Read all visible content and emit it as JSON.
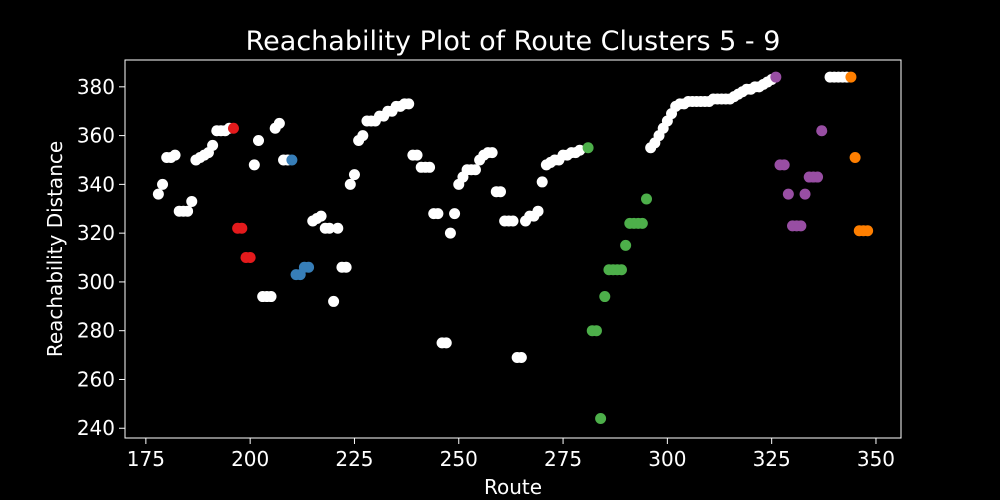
{
  "chart_data": {
    "type": "scatter",
    "title": "Reachability Plot of Route Clusters 5 - 9",
    "xlabel": "Route",
    "ylabel": "Reachability Distance",
    "xlim": [
      170,
      356
    ],
    "ylim": [
      236,
      391
    ],
    "xticks": [
      175,
      200,
      225,
      250,
      275,
      300,
      325,
      350
    ],
    "yticks": [
      240,
      260,
      280,
      300,
      320,
      340,
      360,
      380
    ],
    "grid": false,
    "legend": "none",
    "colors": {
      "background": "#000000",
      "foreground": "#ffffff",
      "unclustered": "#ffffff",
      "red": "#e41a1c",
      "blue": "#377eb8",
      "green": "#4daf4a",
      "purple": "#984ea3",
      "orange": "#ff7f00"
    },
    "groups": [
      {
        "color": "unclustered",
        "points": [
          [
            178,
            336
          ],
          [
            179,
            340
          ],
          [
            180,
            351
          ],
          [
            181,
            351
          ],
          [
            182,
            352
          ],
          [
            183,
            329
          ],
          [
            184,
            329
          ],
          [
            185,
            329
          ],
          [
            186,
            333
          ],
          [
            187,
            350
          ],
          [
            188,
            351
          ],
          [
            189,
            352
          ],
          [
            190,
            353
          ],
          [
            191,
            356
          ],
          [
            192,
            362
          ],
          [
            193,
            362
          ],
          [
            194,
            362
          ],
          [
            195,
            363
          ],
          [
            201,
            348
          ],
          [
            202,
            358
          ],
          [
            203,
            294
          ],
          [
            204,
            294
          ],
          [
            205,
            294
          ],
          [
            206,
            363
          ],
          [
            207,
            365
          ],
          [
            208,
            350
          ],
          [
            209,
            350
          ],
          [
            215,
            325
          ],
          [
            216,
            326
          ],
          [
            217,
            327
          ],
          [
            218,
            322
          ],
          [
            219,
            322
          ],
          [
            220,
            292
          ],
          [
            221,
            322
          ],
          [
            222,
            306
          ],
          [
            223,
            306
          ],
          [
            224,
            340
          ],
          [
            225,
            344
          ],
          [
            226,
            358
          ],
          [
            227,
            360
          ],
          [
            228,
            366
          ],
          [
            229,
            366
          ],
          [
            230,
            366
          ],
          [
            231,
            368
          ],
          [
            232,
            368
          ],
          [
            233,
            370
          ],
          [
            234,
            370
          ],
          [
            235,
            372
          ],
          [
            236,
            372
          ],
          [
            237,
            373
          ],
          [
            238,
            373
          ],
          [
            239,
            352
          ],
          [
            240,
            352
          ],
          [
            241,
            347
          ],
          [
            242,
            347
          ],
          [
            243,
            347
          ],
          [
            244,
            328
          ],
          [
            245,
            328
          ],
          [
            246,
            275
          ],
          [
            247,
            275
          ],
          [
            248,
            320
          ],
          [
            249,
            328
          ],
          [
            250,
            340
          ],
          [
            251,
            343
          ],
          [
            252,
            346
          ],
          [
            253,
            346
          ],
          [
            254,
            346
          ],
          [
            255,
            350
          ],
          [
            256,
            352
          ],
          [
            257,
            353
          ],
          [
            258,
            353
          ],
          [
            259,
            337
          ],
          [
            260,
            337
          ],
          [
            261,
            325
          ],
          [
            262,
            325
          ],
          [
            263,
            325
          ],
          [
            264,
            269
          ],
          [
            265,
            269
          ],
          [
            266,
            325
          ],
          [
            267,
            327
          ],
          [
            268,
            327
          ],
          [
            269,
            329
          ],
          [
            270,
            341
          ],
          [
            271,
            348
          ],
          [
            272,
            349
          ],
          [
            273,
            350
          ],
          [
            274,
            350
          ],
          [
            275,
            352
          ],
          [
            276,
            352
          ],
          [
            277,
            353
          ],
          [
            278,
            353
          ],
          [
            279,
            354
          ],
          [
            296,
            355
          ],
          [
            297,
            357
          ],
          [
            298,
            360
          ],
          [
            299,
            363
          ],
          [
            300,
            366
          ],
          [
            301,
            369
          ],
          [
            302,
            372
          ],
          [
            303,
            373
          ],
          [
            304,
            373
          ],
          [
            305,
            374
          ],
          [
            306,
            374
          ],
          [
            307,
            374
          ],
          [
            308,
            374
          ],
          [
            309,
            374
          ],
          [
            310,
            374
          ],
          [
            311,
            375
          ],
          [
            312,
            375
          ],
          [
            313,
            375
          ],
          [
            314,
            375
          ],
          [
            315,
            375
          ],
          [
            316,
            376
          ],
          [
            317,
            377
          ],
          [
            318,
            378
          ],
          [
            319,
            379
          ],
          [
            320,
            379
          ],
          [
            321,
            380
          ],
          [
            322,
            380
          ],
          [
            323,
            381
          ],
          [
            324,
            382
          ],
          [
            325,
            383
          ],
          [
            339,
            384
          ],
          [
            340,
            384
          ],
          [
            341,
            384
          ],
          [
            342,
            384
          ],
          [
            343,
            384
          ]
        ]
      },
      {
        "color": "red",
        "points": [
          [
            196,
            363
          ],
          [
            197,
            322
          ],
          [
            198,
            322
          ],
          [
            199,
            310
          ],
          [
            200,
            310
          ]
        ]
      },
      {
        "color": "blue",
        "points": [
          [
            210,
            350
          ],
          [
            211,
            303
          ],
          [
            212,
            303
          ],
          [
            213,
            306
          ],
          [
            214,
            306
          ]
        ]
      },
      {
        "color": "green",
        "points": [
          [
            281,
            355
          ],
          [
            282,
            280
          ],
          [
            283,
            280
          ],
          [
            284,
            244
          ],
          [
            285,
            294
          ],
          [
            286,
            305
          ],
          [
            287,
            305
          ],
          [
            288,
            305
          ],
          [
            289,
            305
          ],
          [
            290,
            315
          ],
          [
            291,
            324
          ],
          [
            292,
            324
          ],
          [
            293,
            324
          ],
          [
            294,
            324
          ],
          [
            295,
            334
          ]
        ]
      },
      {
        "color": "purple",
        "points": [
          [
            326,
            384
          ],
          [
            327,
            348
          ],
          [
            328,
            348
          ],
          [
            329,
            336
          ],
          [
            330,
            323
          ],
          [
            331,
            323
          ],
          [
            332,
            323
          ],
          [
            333,
            336
          ],
          [
            334,
            343
          ],
          [
            335,
            343
          ],
          [
            336,
            343
          ],
          [
            337,
            362
          ]
        ]
      },
      {
        "color": "orange",
        "points": [
          [
            344,
            384
          ],
          [
            345,
            351
          ],
          [
            346,
            321
          ],
          [
            347,
            321
          ],
          [
            348,
            321
          ]
        ]
      }
    ]
  }
}
